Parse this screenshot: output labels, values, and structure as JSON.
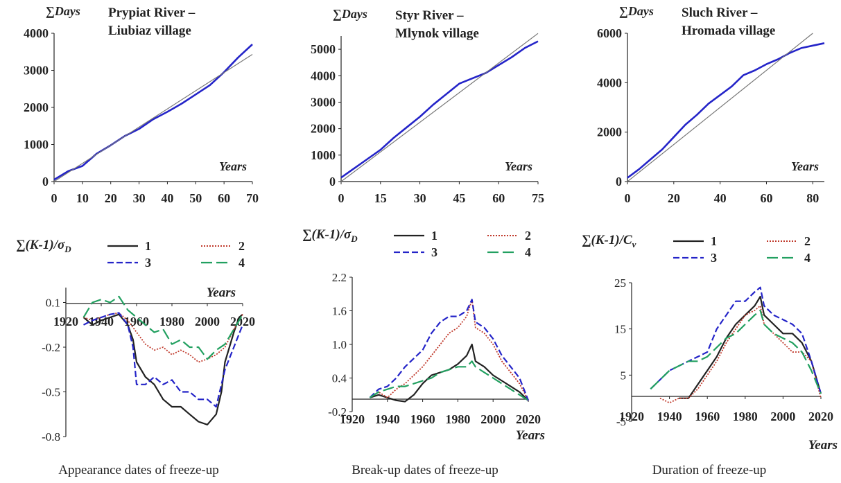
{
  "colors": {
    "black": "#222222",
    "blue": "#2424c8",
    "red": "#c0392b",
    "green": "#22a060",
    "trend": "#777777"
  },
  "captions": [
    "Appearance dates of freeze-up",
    "Break-up dates of freeze-up",
    "Duration of freeze-up"
  ],
  "chart_data": [
    {
      "type": "line",
      "title": "Prypiat River –\nLiubiaz village",
      "ylabel": "∑Days",
      "xlabel": "Years",
      "xlim": [
        0,
        70
      ],
      "ylim": [
        0,
        4000
      ],
      "xticks": [
        0,
        10,
        20,
        30,
        40,
        50,
        60,
        70
      ],
      "yticks": [
        0,
        1000,
        2000,
        3000,
        4000
      ],
      "series": [
        {
          "style": "observed",
          "color": "blue",
          "x": [
            0,
            5,
            10,
            15,
            20,
            25,
            30,
            35,
            40,
            45,
            50,
            55,
            60,
            65,
            70
          ],
          "y": [
            50,
            280,
            420,
            750,
            980,
            1230,
            1420,
            1680,
            1880,
            2100,
            2350,
            2600,
            2950,
            3350,
            3700
          ]
        },
        {
          "style": "trend",
          "color": "trend",
          "x": [
            0,
            70
          ],
          "y": [
            0,
            3430
          ]
        }
      ]
    },
    {
      "type": "line",
      "title": "Styr River –\nMlynok village",
      "ylabel": "∑Days",
      "xlabel": "Years",
      "xlim": [
        0,
        75
      ],
      "ylim": [
        0,
        5500
      ],
      "xticks": [
        0,
        15,
        30,
        45,
        60,
        75
      ],
      "yticks": [
        0,
        1000,
        2000,
        3000,
        4000,
        5000
      ],
      "series": [
        {
          "style": "observed",
          "color": "blue",
          "x": [
            0,
            5,
            10,
            15,
            20,
            25,
            30,
            35,
            40,
            45,
            50,
            55,
            60,
            65,
            70,
            75
          ],
          "y": [
            150,
            500,
            850,
            1200,
            1650,
            2050,
            2450,
            2900,
            3300,
            3700,
            3900,
            4100,
            4400,
            4700,
            5050,
            5300
          ]
        },
        {
          "style": "trend",
          "color": "trend",
          "x": [
            0,
            75
          ],
          "y": [
            0,
            5600
          ]
        }
      ]
    },
    {
      "type": "line",
      "title": "Sluch River –\nHromada village",
      "ylabel": "∑Days",
      "xlabel": "Years",
      "xlim": [
        0,
        85
      ],
      "ylim": [
        0,
        6000
      ],
      "xticks": [
        0,
        20,
        40,
        60,
        80
      ],
      "yticks": [
        0,
        2000,
        4000,
        6000
      ],
      "series": [
        {
          "style": "observed",
          "color": "blue",
          "x": [
            0,
            5,
            10,
            15,
            20,
            25,
            30,
            35,
            40,
            45,
            50,
            55,
            60,
            65,
            70,
            75,
            80,
            85
          ],
          "y": [
            150,
            500,
            900,
            1300,
            1800,
            2300,
            2700,
            3150,
            3500,
            3850,
            4300,
            4500,
            4750,
            4950,
            5200,
            5400,
            5500,
            5600
          ]
        },
        {
          "style": "trend",
          "color": "trend",
          "x": [
            0,
            80
          ],
          "y": [
            0,
            6000
          ]
        }
      ]
    },
    {
      "type": "line",
      "ylabel": "∑(K-1)/σ",
      "ylabel_sub": "D",
      "xlabel": "Years",
      "xlim": [
        1920,
        2020
      ],
      "ylim": [
        -0.8,
        0.2
      ],
      "xticks": [
        1920,
        1940,
        1960,
        1980,
        2000,
        2020
      ],
      "yticks": [
        0.1,
        -0.2,
        -0.5,
        -0.8
      ],
      "yticklabels": [
        "0.1",
        "-0.2",
        "-0.5",
        "-0.8"
      ],
      "legend": [
        "1",
        "2",
        "3",
        "4"
      ],
      "series": [
        {
          "name": "1",
          "style": "solid",
          "color": "black",
          "x": [
            1930,
            1935,
            1940,
            1945,
            1950,
            1955,
            1958,
            1960,
            1965,
            1970,
            1975,
            1980,
            1985,
            1990,
            1995,
            2000,
            2005,
            2008,
            2010,
            2015,
            2018,
            2020
          ],
          "y": [
            0,
            -0.05,
            -0.02,
            0,
            0.02,
            -0.05,
            -0.15,
            -0.3,
            -0.4,
            -0.45,
            -0.55,
            -0.6,
            -0.6,
            -0.65,
            -0.7,
            -0.72,
            -0.65,
            -0.5,
            -0.3,
            -0.1,
            0,
            0.02
          ]
        },
        {
          "name": "2",
          "style": "dotted",
          "color": "red",
          "x": [
            1930,
            1935,
            1940,
            1945,
            1950,
            1955,
            1960,
            1965,
            1970,
            1975,
            1980,
            1985,
            1990,
            1995,
            2000,
            2005,
            2010,
            2015,
            2020
          ],
          "y": [
            0,
            -0.02,
            0,
            0.02,
            0.03,
            -0.02,
            -0.1,
            -0.18,
            -0.22,
            -0.2,
            -0.25,
            -0.22,
            -0.25,
            -0.3,
            -0.28,
            -0.25,
            -0.2,
            -0.08,
            0.02
          ]
        },
        {
          "name": "3",
          "style": "dashed",
          "color": "blue",
          "x": [
            1930,
            1935,
            1940,
            1945,
            1950,
            1955,
            1958,
            1960,
            1965,
            1970,
            1975,
            1980,
            1985,
            1990,
            1995,
            2000,
            2005,
            2010,
            2015,
            2020
          ],
          "y": [
            -0.05,
            -0.02,
            0,
            0.02,
            0.03,
            -0.05,
            -0.2,
            -0.45,
            -0.45,
            -0.4,
            -0.45,
            -0.42,
            -0.5,
            -0.5,
            -0.55,
            -0.55,
            -0.6,
            -0.35,
            -0.2,
            -0.05
          ]
        },
        {
          "name": "4",
          "style": "longdash",
          "color": "green",
          "x": [
            1930,
            1935,
            1940,
            1945,
            1950,
            1955,
            1960,
            1965,
            1970,
            1975,
            1980,
            1985,
            1990,
            1995,
            2000,
            2005,
            2010,
            2015,
            2020
          ],
          "y": [
            0,
            0.1,
            0.12,
            0.1,
            0.14,
            0.05,
            0,
            -0.05,
            -0.1,
            -0.08,
            -0.18,
            -0.15,
            -0.2,
            -0.2,
            -0.28,
            -0.22,
            -0.18,
            -0.08,
            0.02
          ]
        }
      ]
    },
    {
      "type": "line",
      "ylabel": "∑(K-1)/σ",
      "ylabel_sub": "D",
      "xlabel": "Years",
      "xlim": [
        1920,
        2020
      ],
      "ylim": [
        -0.2,
        2.2
      ],
      "xticks": [
        1920,
        1940,
        1960,
        1980,
        2000,
        2020
      ],
      "yticks": [
        2.2,
        1.6,
        1.0,
        0.4,
        -0.2
      ],
      "yticklabels": [
        "2.2",
        "1.6",
        "1.0",
        "0.4",
        "-0.2"
      ],
      "legend": [
        "1",
        "2",
        "3",
        "4"
      ],
      "series": [
        {
          "name": "1",
          "style": "solid",
          "color": "black",
          "x": [
            1930,
            1935,
            1940,
            1945,
            1950,
            1955,
            1960,
            1965,
            1970,
            1975,
            1980,
            1985,
            1988,
            1990,
            1995,
            2000,
            2005,
            2010,
            2015,
            2020
          ],
          "y": [
            0.05,
            0.1,
            0.05,
            0,
            -0.02,
            0.1,
            0.3,
            0.45,
            0.5,
            0.55,
            0.65,
            0.8,
            1.0,
            0.7,
            0.6,
            0.45,
            0.35,
            0.25,
            0.15,
            0
          ]
        },
        {
          "name": "2",
          "style": "dotted",
          "color": "red",
          "x": [
            1930,
            1935,
            1940,
            1945,
            1950,
            1955,
            1960,
            1965,
            1970,
            1975,
            1980,
            1985,
            1988,
            1990,
            1995,
            2000,
            2005,
            2010,
            2015,
            2020
          ],
          "y": [
            0.05,
            0.15,
            0.05,
            0.2,
            0.3,
            0.45,
            0.6,
            0.8,
            1.0,
            1.2,
            1.3,
            1.5,
            1.8,
            1.3,
            1.2,
            1.0,
            0.7,
            0.5,
            0.3,
            0
          ]
        },
        {
          "name": "3",
          "style": "dashed",
          "color": "blue",
          "x": [
            1930,
            1935,
            1940,
            1945,
            1950,
            1955,
            1960,
            1965,
            1970,
            1975,
            1980,
            1985,
            1988,
            1990,
            1995,
            2000,
            2005,
            2010,
            2015,
            2020
          ],
          "y": [
            0.05,
            0.2,
            0.25,
            0.4,
            0.6,
            0.75,
            0.9,
            1.2,
            1.4,
            1.5,
            1.5,
            1.6,
            1.8,
            1.4,
            1.3,
            1.1,
            0.8,
            0.6,
            0.4,
            0
          ]
        },
        {
          "name": "4",
          "style": "longdash",
          "color": "green",
          "x": [
            1930,
            1935,
            1940,
            1945,
            1950,
            1955,
            1960,
            1965,
            1970,
            1975,
            1980,
            1985,
            1988,
            1990,
            1995,
            2000,
            2005,
            2010,
            2015,
            2020
          ],
          "y": [
            0.05,
            0.15,
            0.2,
            0.25,
            0.25,
            0.3,
            0.35,
            0.4,
            0.5,
            0.55,
            0.6,
            0.6,
            0.7,
            0.6,
            0.5,
            0.4,
            0.3,
            0.2,
            0.1,
            0
          ]
        }
      ]
    },
    {
      "type": "line",
      "ylabel": "∑(K-1)/C",
      "ylabel_sub": "v",
      "xlabel": "Years",
      "xlim": [
        1920,
        2020
      ],
      "ylim": [
        -5,
        25
      ],
      "xticks": [
        1920,
        1940,
        1960,
        1980,
        2000,
        2020
      ],
      "yticks": [
        25,
        15,
        5,
        -5
      ],
      "yticklabels": [
        "25",
        "15",
        "5",
        "-5"
      ],
      "legend": [
        "1",
        "2",
        "3",
        "4"
      ],
      "series": [
        {
          "name": "1",
          "style": "solid",
          "color": "black",
          "x": [
            1945,
            1950,
            1955,
            1960,
            1965,
            1970,
            1975,
            1980,
            1985,
            1988,
            1990,
            1995,
            2000,
            2005,
            2010,
            2015,
            2020
          ],
          "y": [
            0,
            0,
            3,
            6,
            9,
            13,
            16,
            18,
            20,
            22,
            18,
            16,
            14,
            14,
            12,
            8,
            1
          ]
        },
        {
          "name": "2",
          "style": "dotted",
          "color": "red",
          "x": [
            1935,
            1940,
            1945,
            1950,
            1955,
            1960,
            1965,
            1970,
            1975,
            1980,
            1985,
            1988,
            1990,
            1995,
            2000,
            2005,
            2010,
            2015,
            2020
          ],
          "y": [
            0,
            -1,
            0,
            0,
            2,
            5,
            8,
            12,
            15,
            18,
            19,
            20,
            16,
            14,
            12,
            10,
            10,
            8,
            0
          ]
        },
        {
          "name": "3",
          "style": "dashed",
          "color": "blue",
          "x": [
            1930,
            1935,
            1940,
            1945,
            1950,
            1955,
            1960,
            1965,
            1970,
            1975,
            1980,
            1985,
            1988,
            1990,
            1995,
            2000,
            2005,
            2010,
            2015,
            2020
          ],
          "y": [
            2,
            4,
            6,
            7,
            8,
            9,
            10,
            15,
            18,
            21,
            21,
            23,
            24,
            20,
            18,
            17,
            16,
            14,
            8,
            1
          ]
        },
        {
          "name": "4",
          "style": "longdash",
          "color": "green",
          "x": [
            1930,
            1935,
            1940,
            1945,
            1950,
            1955,
            1960,
            1965,
            1970,
            1975,
            1980,
            1985,
            1988,
            1990,
            1995,
            2000,
            2005,
            2010,
            2015,
            2020
          ],
          "y": [
            2,
            4,
            6,
            7,
            8,
            8,
            9,
            11,
            13,
            14,
            16,
            18,
            19,
            16,
            14,
            13,
            12,
            10,
            6,
            1
          ]
        }
      ]
    }
  ]
}
